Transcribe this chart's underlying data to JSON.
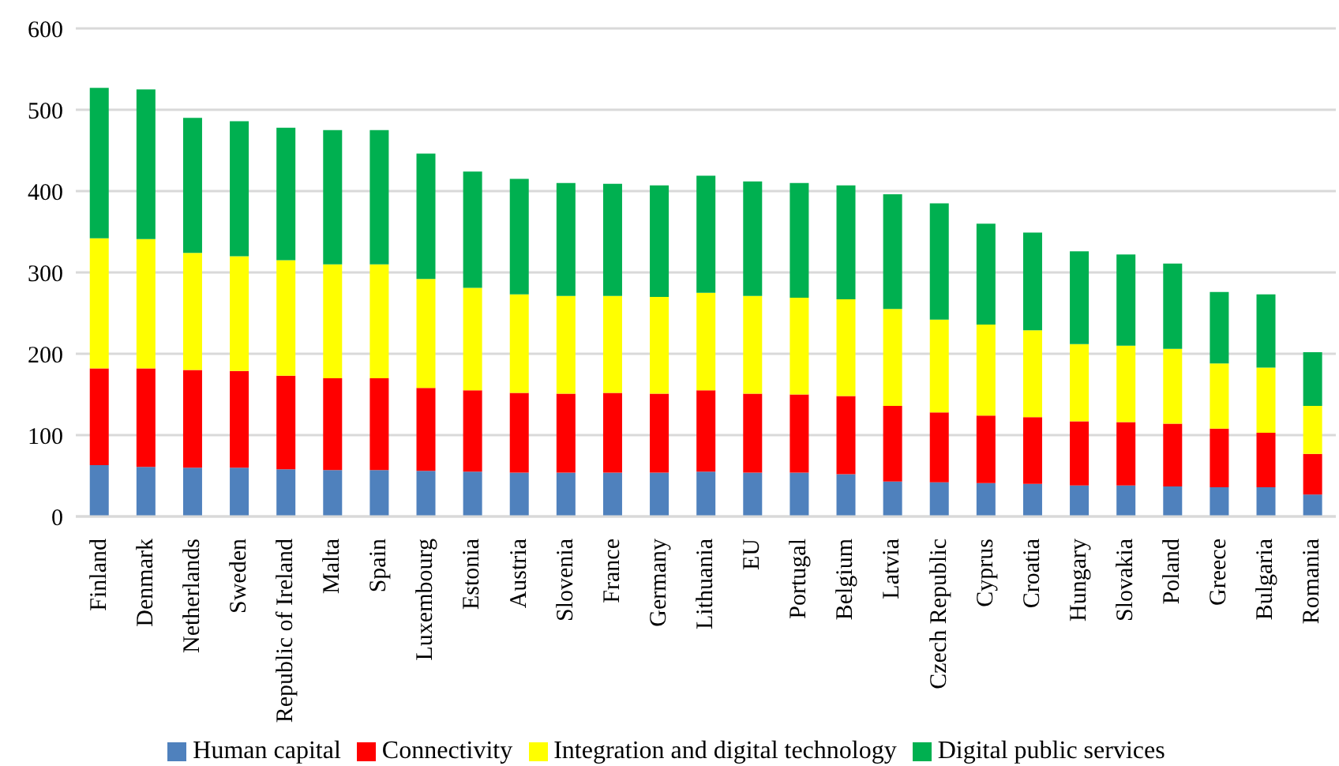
{
  "chart_data": {
    "type": "bar",
    "stacked": true,
    "categories": [
      "Finland",
      "Denmark",
      "Netherlands",
      "Sweden",
      "Republic of Ireland",
      "Malta",
      "Spain",
      "Luxembourg",
      "Estonia",
      "Austria",
      "Slovenia",
      "France",
      "Germany",
      "Lithuania",
      "EU",
      "Portugal",
      "Belgium",
      "Latvia",
      "Czech Republic",
      "Cyprus",
      "Croatia",
      "Hungary",
      "Slovakia",
      "Poland",
      "Greece",
      "Bulgaria",
      "Romania"
    ],
    "series": [
      {
        "name": "Human capital",
        "color": "#4f81bd",
        "values": [
          63,
          61,
          60,
          60,
          58,
          57,
          57,
          56,
          55,
          54,
          54,
          54,
          54,
          55,
          54,
          54,
          52,
          43,
          42,
          41,
          40,
          38,
          38,
          37,
          36,
          36,
          27
        ]
      },
      {
        "name": "Connectivity",
        "color": "#ff0000",
        "values": [
          119,
          121,
          120,
          119,
          115,
          113,
          113,
          102,
          100,
          98,
          97,
          98,
          97,
          100,
          97,
          96,
          96,
          93,
          86,
          83,
          82,
          79,
          78,
          77,
          72,
          67,
          50
        ]
      },
      {
        "name": "Integration and digital technology",
        "color": "#ffff00",
        "values": [
          160,
          159,
          144,
          141,
          142,
          140,
          140,
          134,
          126,
          121,
          120,
          119,
          119,
          120,
          120,
          119,
          119,
          119,
          114,
          112,
          107,
          95,
          94,
          92,
          80,
          80,
          59
        ]
      },
      {
        "name": "Digital public services",
        "color": "#00b050",
        "values": [
          185,
          184,
          166,
          166,
          163,
          165,
          165,
          154,
          143,
          142,
          139,
          138,
          137,
          144,
          141,
          141,
          140,
          141,
          143,
          124,
          120,
          114,
          112,
          105,
          88,
          90,
          66
        ]
      }
    ],
    "ylim": [
      0,
      600
    ],
    "yticks": [
      0,
      100,
      200,
      300,
      400,
      500,
      600
    ],
    "grid": "y",
    "legend": "bottom"
  }
}
